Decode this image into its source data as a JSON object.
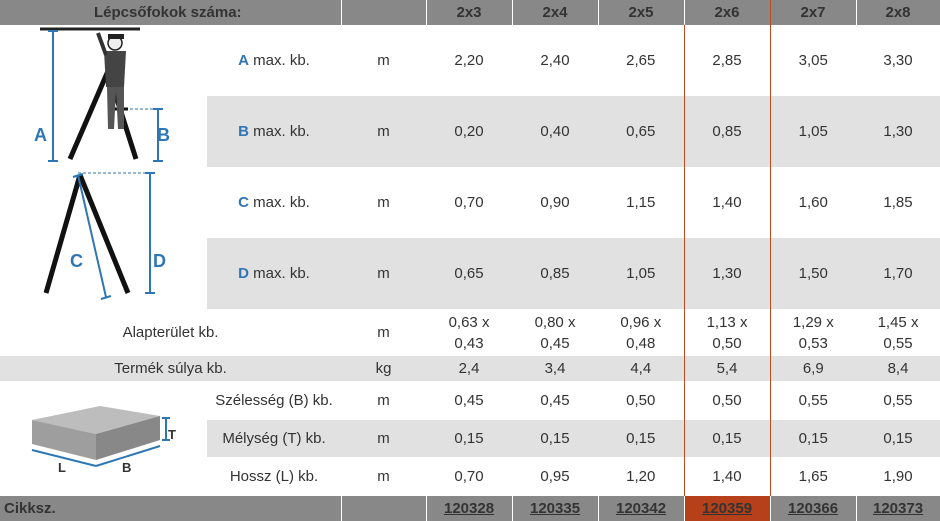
{
  "header": {
    "title": "Lépcsőfokok száma:",
    "columns": [
      "2x3",
      "2x4",
      "2x5",
      "2x6",
      "2x7",
      "2x8"
    ],
    "highlight_index": 3
  },
  "dimension_rows": [
    {
      "letter": "A",
      "label": "max. kb.",
      "unit": "m",
      "values": [
        "2,20",
        "2,40",
        "2,65",
        "2,85",
        "3,05",
        "3,30"
      ]
    },
    {
      "letter": "B",
      "label": "max. kb.",
      "unit": "m",
      "values": [
        "0,20",
        "0,40",
        "0,65",
        "0,85",
        "1,05",
        "1,30"
      ]
    },
    {
      "letter": "C",
      "label": "max. kb.",
      "unit": "m",
      "values": [
        "0,70",
        "0,90",
        "1,15",
        "1,40",
        "1,60",
        "1,85"
      ]
    },
    {
      "letter": "D",
      "label": "max. kb.",
      "unit": "m",
      "values": [
        "0,65",
        "0,85",
        "1,05",
        "1,30",
        "1,50",
        "1,70"
      ]
    }
  ],
  "footprint": {
    "label": "Alapterület kb.",
    "unit": "m",
    "values": [
      [
        "0,63 x",
        "0,43"
      ],
      [
        "0,80 x",
        "0,45"
      ],
      [
        "0,96 x",
        "0,48"
      ],
      [
        "1,13 x",
        "0,50"
      ],
      [
        "1,29 x",
        "0,53"
      ],
      [
        "1,45 x",
        "0,55"
      ]
    ]
  },
  "weight": {
    "label": "Termék súlya kb.",
    "unit": "kg",
    "values": [
      "2,4",
      "3,4",
      "4,4",
      "5,4",
      "6,9",
      "8,4"
    ]
  },
  "package_rows": [
    {
      "label": "Szélesség (B) kb.",
      "unit": "m",
      "values": [
        "0,45",
        "0,45",
        "0,50",
        "0,50",
        "0,55",
        "0,55"
      ]
    },
    {
      "label": "Mélység (T) kb.",
      "unit": "m",
      "values": [
        "0,15",
        "0,15",
        "0,15",
        "0,15",
        "0,15",
        "0,15"
      ]
    },
    {
      "label": "Hossz (L) kb.",
      "unit": "m",
      "values": [
        "0,70",
        "0,95",
        "1,20",
        "1,40",
        "1,65",
        "1,90"
      ]
    }
  ],
  "footer": {
    "label": "Cikksz.",
    "codes": [
      "120328",
      "120335",
      "120342",
      "120359",
      "120366",
      "120373"
    ]
  },
  "diagram_labels": {
    "ladder_top": {
      "a": "A",
      "b": "B"
    },
    "ladder_side": {
      "c": "C",
      "d": "D"
    },
    "box": {
      "t": "T",
      "l": "L",
      "b": "B"
    }
  },
  "colors": {
    "header_bg": "#888888",
    "stripe_bg": "#e1e1e1",
    "highlight": "#c04a1f",
    "highlight_code_bg": "#b5401a",
    "dimension_blue": "#2f76b5"
  }
}
